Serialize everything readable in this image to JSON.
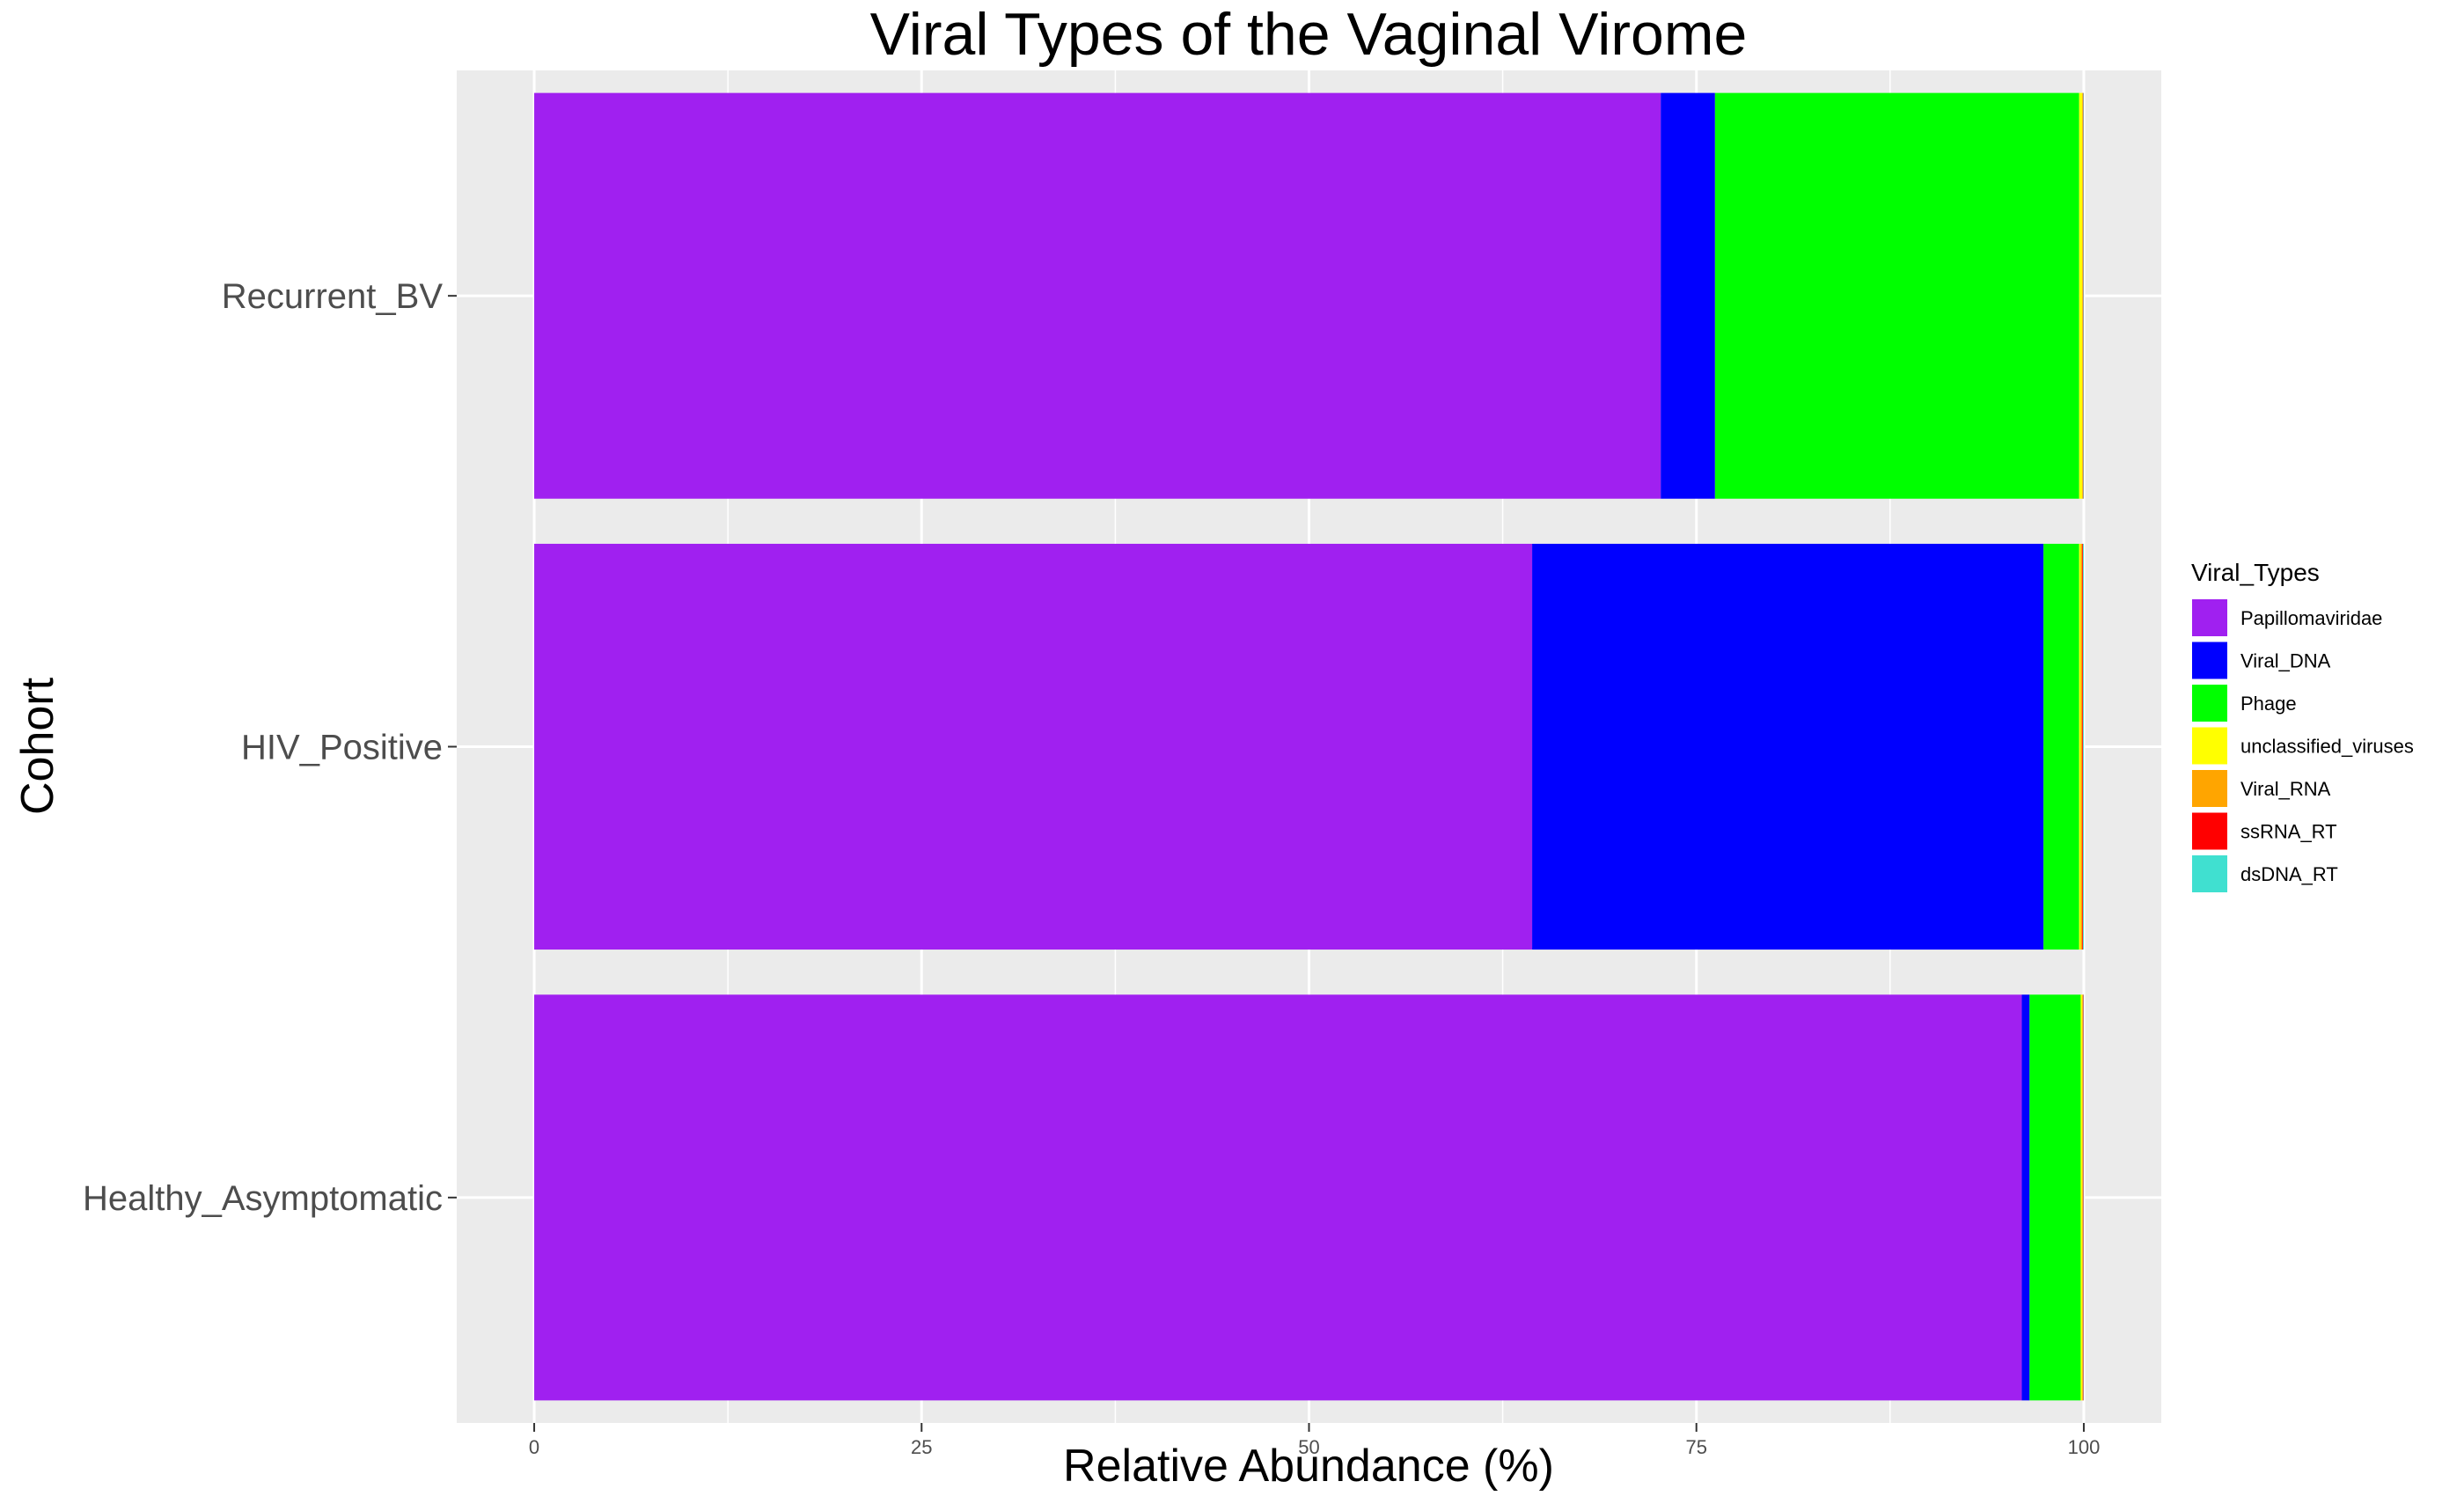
{
  "chart_data": {
    "type": "bar",
    "orientation": "horizontal",
    "stacked": true,
    "title": "Viral Types of the Vaginal Virome",
    "xlabel": "Relative Abundance (%)",
    "ylabel": "Cohort",
    "xlim": [
      -5,
      105
    ],
    "xticks": [
      0,
      25,
      50,
      75,
      100
    ],
    "grid": true,
    "legend_position": "right",
    "legend_title": "Viral_Types",
    "categories": [
      "Recurrent_BV",
      "HIV_Positive",
      "Healthy_Asymptomatic"
    ],
    "series": [
      {
        "name": "Papillomaviridae",
        "color": "#A020F0",
        "values": [
          72.7,
          64.4,
          96.0
        ]
      },
      {
        "name": "Viral_DNA",
        "color": "#0000FF",
        "values": [
          3.5,
          33.0,
          0.5
        ]
      },
      {
        "name": "Phage",
        "color": "#00FF00",
        "values": [
          23.5,
          2.3,
          3.3
        ]
      },
      {
        "name": "unclassified_viruses",
        "color": "#FFFF00",
        "values": [
          0.2,
          0.1,
          0.1
        ]
      },
      {
        "name": "Viral_RNA",
        "color": "#FFA500",
        "values": [
          0.05,
          0.1,
          0.05
        ]
      },
      {
        "name": "ssRNA_RT",
        "color": "#FF0000",
        "values": [
          0.02,
          0.05,
          0.03
        ]
      },
      {
        "name": "dsDNA_RT",
        "color": "#40E0D0",
        "values": [
          0.03,
          0.05,
          0.02
        ]
      }
    ]
  }
}
